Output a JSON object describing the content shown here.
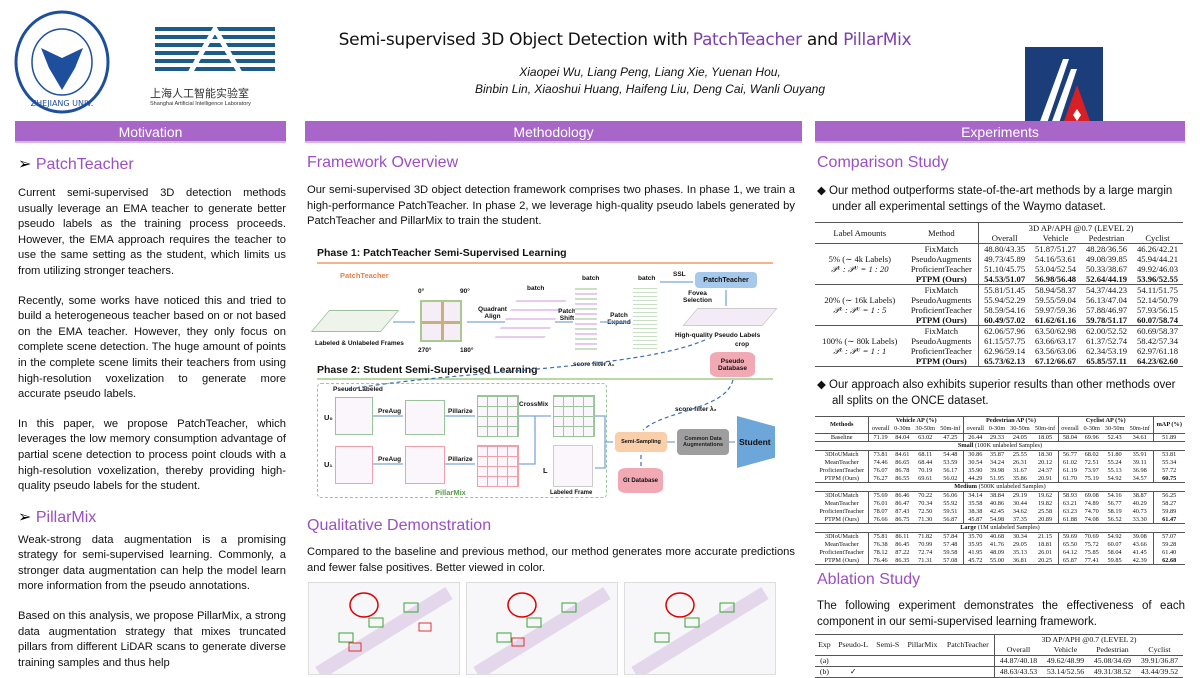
{
  "header": {
    "title_pre": "Semi-supervised 3D Object Detection with ",
    "title_hl1": "PatchTeacher",
    "title_mid": " and ",
    "title_hl2": "PillarMix",
    "authors_line1": "Xiaopei Wu, Liang Peng, Liang Xie, Yuenan Hou,",
    "authors_line2": "Binbin Lin, Xiaoshui Huang, Haifeng Liu, Deng Cai, Wanli Ouyang",
    "logo_zju_text": "ZHEJIANG UNIVERSITY 1897",
    "logo_shlab_cn": "上海人工智能实验室",
    "logo_shlab_en": "Shanghai Artificial Intelligence Laboratory"
  },
  "colors": {
    "accent": "#a866c8",
    "section": "#9b4fc4"
  },
  "motivation": {
    "head": "Motivation",
    "s1": "PatchTeacher",
    "p1": "Current semi-supervised 3D detection methods usually leverage an EMA teacher to generate better pseudo labels as the training process proceeds. However, the EMA approach requires the teacher to use the same setting as the student, which limits us from utilizing stronger teachers.",
    "p2": "Recently, some works have noticed this and tried to build a heterogeneous teacher based on or not based on the EMA teacher. However, they only focus on complete scene detection. The huge amount of points in the complete scene limits their teachers from using high-resolution voxelization to generate more accurate pseudo labels.",
    "p3": "In this paper, we propose PatchTeacher, which leverages the low memory consumption advantage of partial scene detection to process point clouds with a high-resolution voxelization, thereby providing high-quality pseudo labels for the student.",
    "s2": "PillarMix",
    "p4": "Weak-strong data augmentation is a promising strategy for semi-supervised learning. Commonly, a stronger data augmentation can help the model learn more information from the pseudo annotations.",
    "p5": "Based on this analysis, we propose PillarMix, a strong data augmentation strategy that mixes truncated pillars from different LiDAR scans to generate diverse training samples and thus help"
  },
  "methodology": {
    "head": "Methodology",
    "s1": "Framework Overview",
    "p1": "Our semi-supervised 3D object detection framework comprises two phases. In phase 1, we train a high-performance PatchTeacher. In phase 2, we leverage high-quality pseudo labels generated by PatchTeacher and PillarMix to train the student.",
    "diagram": {
      "phase1": "Phase 1: PatchTeacher Semi-Supervised Learning",
      "phase2": "Phase 2: Student Semi-Supervised Learning",
      "patchteacher": "PatchTeacher",
      "frames": "Labeled & Unlabeled Frames",
      "a0": "0°",
      "a90": "90°",
      "a270": "270°",
      "a180": "180°",
      "quadrant": "Quadrant Align",
      "batch": "batch",
      "shift": "Patch Shift",
      "expand": "Patch Expand",
      "ssl": "SSL",
      "pt_box": "PatchTeacher",
      "fovea": "Fovea Selection",
      "hq": "High-quality Pseudo Labels",
      "crop": "crop",
      "pseudo_db": "Pseudo Database",
      "filter1": "score filter λ₁",
      "filter2": "score filter λ₂",
      "pseudo_labeled": "Pseudo Labeled",
      "u0": "U₀",
      "u1": "U₁",
      "preaug": "PreAug",
      "pillarize": "Pillarize",
      "crossmix": "CrossMix",
      "l": "L",
      "labeled_frame": "Labeled Frame",
      "pillarmix": "PillarMix",
      "semi": "Semi-Sampling",
      "common": "Common Data Augmentations",
      "student": "Student",
      "gt_db": "Gt Database",
      "x": "x",
      "y": "y"
    },
    "s2": "Qualitative Demonstration",
    "p2": "Compared to the baseline and previous method, our method generates more accurate predictions and fewer false positives. Better viewed in color."
  },
  "experiments": {
    "head": "Experiments",
    "s1": "Comparison Study",
    "b1": "Our method outperforms state-of-the-art methods by a large margin under all experimental settings of the Waymo dataset.",
    "waymo": {
      "h_label": "Label Amounts",
      "h_method": "Method",
      "h_group": "3D AP/APH @0.7 (LEVEL 2)",
      "cols": [
        "Overall",
        "Vehicle",
        "Pedestrian",
        "Cyclist"
      ],
      "groups": [
        {
          "label": "5% (∼ 4k Labels)",
          "ratio": "𝒫ᴸ : 𝒫ᵁ = 1 : 20",
          "rows": [
            [
              "FixMatch",
              "48.80/43.35",
              "51.87/51.27",
              "48.28/36.56",
              "46.26/42.21"
            ],
            [
              "PseudoAugments",
              "49.73/45.89",
              "54.16/53.61",
              "49.08/39.85",
              "45.94/44.21"
            ],
            [
              "ProficientTeacher",
              "51.10/45.75",
              "53.04/52.54",
              "50.33/38.67",
              "49.92/46.03"
            ],
            [
              "PTPM (Ours)",
              "54.53/51.07",
              "56.98/56.48",
              "52.64/44.19",
              "53.96/52.55"
            ]
          ]
        },
        {
          "label": "20% (∼ 16k Labels)",
          "ratio": "𝒫ᴸ : 𝒫ᵁ = 1 : 5",
          "rows": [
            [
              "FixMatch",
              "55.81/51.45",
              "58.94/58.37",
              "54.37/44.23",
              "54.11/51.75"
            ],
            [
              "PseudoAugments",
              "55.94/52.29",
              "59.55/59.04",
              "56.13/47.04",
              "52.14/50.79"
            ],
            [
              "ProficientTeacher",
              "58.59/54.16",
              "59.97/59.36",
              "57.88/46.97",
              "57.93/56.15"
            ],
            [
              "PTPM (Ours)",
              "60.49/57.02",
              "61.62/61.16",
              "59.78/51.17",
              "60.07/58.74"
            ]
          ]
        },
        {
          "label": "100% (∼ 80k Labels)",
          "ratio": "𝒫ᴸ : 𝒫ᵁ = 1 : 1",
          "rows": [
            [
              "FixMatch",
              "62.06/57.96",
              "63.50/62.98",
              "62.00/52.52",
              "60.69/58.37"
            ],
            [
              "PseudoAugments",
              "61.15/57.75",
              "63.66/63.17",
              "61.37/52.74",
              "58.42/57.34"
            ],
            [
              "ProficientTeacher",
              "62.96/59.14",
              "63.56/63.06",
              "62.34/53.19",
              "62.97/61.18"
            ],
            [
              "PTPM (Ours)",
              "65.73/62.13",
              "67.12/66.67",
              "65.85/57.11",
              "64.23/62.60"
            ]
          ]
        }
      ]
    },
    "b2": "Our approach also exhibits superior results than other methods over all splits on the ONCE dataset.",
    "once": {
      "h_methods": "Methods",
      "h_vehicle": "Vehicle AP (%)",
      "h_ped": "Pedestrian AP (%)",
      "h_cyc": "Cyclist AP (%)",
      "h_map": "mAP (%)",
      "sub": [
        "overall",
        "0-30m",
        "30-50m",
        "50m-inf"
      ],
      "baseline": [
        "Baseline",
        "71.19",
        "84.04",
        "63.02",
        "47.25",
        "26.44",
        "29.33",
        "24.05",
        "18.05",
        "58.04",
        "69.96",
        "52.43",
        "34.61",
        "51.89"
      ],
      "splits": [
        {
          "name": "Small",
          "desc": " (100K unlabeled Samples)",
          "rows": [
            [
              "3DIoUMatch",
              "73.81",
              "84.61",
              "68.11",
              "54.48",
              "30.86",
              "35.87",
              "25.55",
              "18.30",
              "56.77",
              "68.02",
              "51.80",
              "35.91",
              "53.81"
            ],
            [
              "MeanTeacher",
              "74.46",
              "86.65",
              "68.44",
              "53.59",
              "30.54",
              "34.24",
              "26.31",
              "20.12",
              "61.02",
              "72.51",
              "55.24",
              "39.11",
              "55.34"
            ],
            [
              "ProficientTeacher",
              "76.07",
              "86.78",
              "70.19",
              "56.17",
              "35.90",
              "39.98",
              "31.67",
              "24.37",
              "61.19",
              "73.97",
              "55.13",
              "36.98",
              "57.72"
            ],
            [
              "PTPM (Ours)",
              "76.27",
              "86.55",
              "69.61",
              "56.02",
              "44.29",
              "51.95",
              "35.86",
              "20.91",
              "61.70",
              "75.19",
              "54.92",
              "34.57",
              "60.75"
            ]
          ]
        },
        {
          "name": "Medium",
          "desc": " (500K unlabeled Samples)",
          "rows": [
            [
              "3DIoUMatch",
              "75.69",
              "86.46",
              "70.22",
              "56.06",
              "34.14",
              "38.84",
              "29.19",
              "19.62",
              "58.93",
              "69.08",
              "54.16",
              "38.87",
              "56.25"
            ],
            [
              "MeanTeacher",
              "76.01",
              "86.47",
              "70.34",
              "55.92",
              "35.58",
              "40.86",
              "30.44",
              "19.82",
              "63.21",
              "74.89",
              "56.77",
              "40.29",
              "58.27"
            ],
            [
              "ProficientTeacher",
              "78.07",
              "87.43",
              "72.50",
              "59.51",
              "38.38",
              "42.45",
              "34.62",
              "25.58",
              "63.23",
              "74.70",
              "58.19",
              "40.73",
              "59.89"
            ],
            [
              "PTPM (Ours)",
              "76.66",
              "86.75",
              "71.30",
              "56.87",
              "45.87",
              "54.98",
              "37.35",
              "20.89",
              "61.88",
              "74.08",
              "56.52",
              "33.30",
              "61.47"
            ]
          ]
        },
        {
          "name": "Large",
          "desc": " (1M unlabeled Samples)",
          "rows": [
            [
              "3DIoUMatch",
              "75.81",
              "86.11",
              "71.82",
              "57.84",
              "35.70",
              "40.68",
              "30.34",
              "21.15",
              "59.69",
              "70.69",
              "54.92",
              "39.08",
              "57.07"
            ],
            [
              "MeanTeacher",
              "76.38",
              "86.45",
              "70.99",
              "57.48",
              "35.95",
              "41.76",
              "29.05",
              "18.81",
              "65.50",
              "75.72",
              "60.07",
              "43.66",
              "59.28"
            ],
            [
              "ProficientTeacher",
              "78.12",
              "87.22",
              "72.74",
              "59.58",
              "41.95",
              "48.09",
              "35.13",
              "26.01",
              "64.12",
              "75.85",
              "58.04",
              "41.45",
              "61.40"
            ],
            [
              "PTPM (Ours)",
              "76.46",
              "86.35",
              "71.31",
              "57.08",
              "45.72",
              "55.00",
              "36.81",
              "20.25",
              "65.87",
              "77.41",
              "59.85",
              "42.39",
              "62.68"
            ]
          ]
        }
      ]
    },
    "s2": "Ablation Study",
    "p_abl": "The following experiment demonstrates the effectiveness of each component in our semi-supervised learning framework.",
    "ablation": {
      "cols": [
        "Exp",
        "Pseudo-L",
        "Semi-S",
        "PillarMix",
        "PatchTeacher"
      ],
      "h_group": "3D AP/APH @0.7 (LEVEL 2)",
      "metrics": [
        "Overall",
        "Vehicle",
        "Pedestrian",
        "Cyclist"
      ],
      "rows": [
        [
          "(a)",
          "",
          "",
          "",
          "",
          "44.87/40.18",
          "49.62/48.99",
          "45.08/34.69",
          "39.91/36.87"
        ],
        [
          "(b)",
          "✓",
          "",
          "",
          "",
          "48.63/43.53",
          "53.14/52.56",
          "49.31/38.52",
          "43.44/39.52"
        ]
      ]
    }
  }
}
